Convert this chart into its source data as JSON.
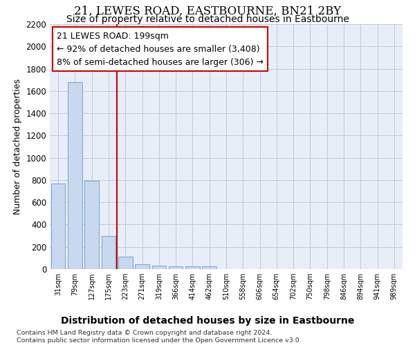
{
  "title": "21, LEWES ROAD, EASTBOURNE, BN21 2BY",
  "subtitle": "Size of property relative to detached houses in Eastbourne",
  "xlabel": "Distribution of detached houses by size in Eastbourne",
  "ylabel": "Number of detached properties",
  "categories": [
    "31sqm",
    "79sqm",
    "127sqm",
    "175sqm",
    "223sqm",
    "271sqm",
    "319sqm",
    "366sqm",
    "414sqm",
    "462sqm",
    "510sqm",
    "558sqm",
    "606sqm",
    "654sqm",
    "702sqm",
    "750sqm",
    "798sqm",
    "846sqm",
    "894sqm",
    "941sqm",
    "989sqm"
  ],
  "values": [
    770,
    1680,
    795,
    300,
    110,
    45,
    32,
    25,
    22,
    25,
    0,
    0,
    0,
    0,
    0,
    0,
    0,
    0,
    0,
    0,
    0
  ],
  "bar_color": "#c8d8ee",
  "bar_edge_color": "#6699cc",
  "vline_x": 3.5,
  "vline_color": "#cc0000",
  "annotation_text": "21 LEWES ROAD: 199sqm\n← 92% of detached houses are smaller (3,408)\n8% of semi-detached houses are larger (306) →",
  "annotation_box_color": "#ffffff",
  "annotation_box_edge": "#cc0000",
  "ylim": [
    0,
    2200
  ],
  "yticks": [
    0,
    200,
    400,
    600,
    800,
    1000,
    1200,
    1400,
    1600,
    1800,
    2000,
    2200
  ],
  "grid_color": "#c0c8d8",
  "bg_color": "#e8eef8",
  "footnote": "Contains HM Land Registry data © Crown copyright and database right 2024.\nContains public sector information licensed under the Open Government Licence v3.0.",
  "title_fontsize": 12,
  "subtitle_fontsize": 10,
  "xlabel_fontsize": 10,
  "ylabel_fontsize": 9,
  "annot_fontsize": 9
}
